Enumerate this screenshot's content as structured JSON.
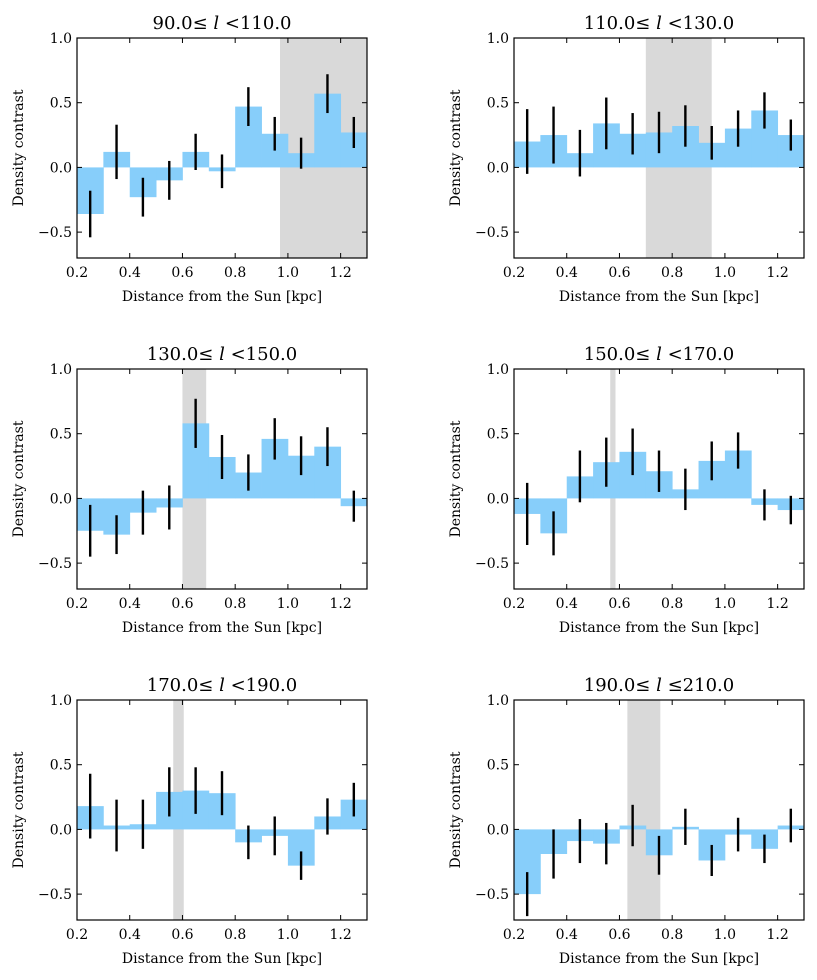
{
  "chart_data": [
    {
      "type": "bar",
      "title_parts": [
        "90.0≤ ",
        "l",
        " <110.0"
      ],
      "xlabel": "Distance from the Sun [kpc]",
      "ylabel": "Density contrast",
      "xlim": [
        0.2,
        1.3
      ],
      "ylim": [
        -0.7,
        1.0
      ],
      "xticks": [
        "0.2",
        "0.4",
        "0.6",
        "0.8",
        "1.0",
        "1.2"
      ],
      "yticks": [
        "−0.5",
        "0.0",
        "0.5",
        "1.0"
      ],
      "shaded_region": [
        0.97,
        1.3
      ],
      "bin_edges": [
        0.2,
        0.3,
        0.4,
        0.5,
        0.6,
        0.7,
        0.8,
        0.9,
        1.0,
        1.1,
        1.2,
        1.3
      ],
      "values": [
        -0.36,
        0.12,
        -0.23,
        -0.1,
        0.12,
        -0.03,
        0.47,
        0.26,
        0.11,
        0.57,
        0.27
      ],
      "errors": [
        0.18,
        0.21,
        0.15,
        0.15,
        0.14,
        0.13,
        0.15,
        0.13,
        0.12,
        0.15,
        0.12
      ],
      "bar_color": "#87cefa",
      "shade_color": "#d9d9d9"
    },
    {
      "type": "bar",
      "title_parts": [
        "110.0≤ ",
        "l",
        " <130.0"
      ],
      "xlabel": "Distance from the Sun [kpc]",
      "ylabel": "Density contrast",
      "xlim": [
        0.2,
        1.3
      ],
      "ylim": [
        -0.7,
        1.0
      ],
      "xticks": [
        "0.2",
        "0.4",
        "0.6",
        "0.8",
        "1.0",
        "1.2"
      ],
      "yticks": [
        "−0.5",
        "0.0",
        "0.5",
        "1.0"
      ],
      "shaded_region": [
        0.7,
        0.95
      ],
      "bin_edges": [
        0.2,
        0.3,
        0.4,
        0.5,
        0.6,
        0.7,
        0.8,
        0.9,
        1.0,
        1.1,
        1.2,
        1.3
      ],
      "values": [
        0.2,
        0.25,
        0.11,
        0.34,
        0.26,
        0.27,
        0.32,
        0.19,
        0.3,
        0.44,
        0.25
      ],
      "errors": [
        0.25,
        0.22,
        0.18,
        0.2,
        0.16,
        0.16,
        0.16,
        0.13,
        0.14,
        0.14,
        0.12
      ],
      "bar_color": "#87cefa",
      "shade_color": "#d9d9d9"
    },
    {
      "type": "bar",
      "title_parts": [
        "130.0≤ ",
        "l",
        " <150.0"
      ],
      "xlabel": "Distance from the Sun [kpc]",
      "ylabel": "Density contrast",
      "xlim": [
        0.2,
        1.3
      ],
      "ylim": [
        -0.7,
        1.0
      ],
      "xticks": [
        "0.2",
        "0.4",
        "0.6",
        "0.8",
        "1.0",
        "1.2"
      ],
      "yticks": [
        "−0.5",
        "0.0",
        "0.5",
        "1.0"
      ],
      "shaded_region": [
        0.6,
        0.69
      ],
      "bin_edges": [
        0.2,
        0.3,
        0.4,
        0.5,
        0.6,
        0.7,
        0.8,
        0.9,
        1.0,
        1.1,
        1.2,
        1.3
      ],
      "values": [
        -0.25,
        -0.28,
        -0.11,
        -0.07,
        0.58,
        0.32,
        0.2,
        0.46,
        0.33,
        0.4,
        -0.06
      ],
      "errors": [
        0.2,
        0.15,
        0.17,
        0.17,
        0.19,
        0.17,
        0.14,
        0.16,
        0.15,
        0.15,
        0.12
      ],
      "bar_color": "#87cefa",
      "shade_color": "#d9d9d9"
    },
    {
      "type": "bar",
      "title_parts": [
        "150.0≤ ",
        "l",
        " <170.0"
      ],
      "xlabel": "Distance from the Sun [kpc]",
      "ylabel": "Density contrast",
      "xlim": [
        0.2,
        1.3
      ],
      "ylim": [
        -0.7,
        1.0
      ],
      "xticks": [
        "0.2",
        "0.4",
        "0.6",
        "0.8",
        "1.0",
        "1.2"
      ],
      "yticks": [
        "−0.5",
        "0.0",
        "0.5",
        "1.0"
      ],
      "shaded_region": [
        0.565,
        0.585
      ],
      "bin_edges": [
        0.2,
        0.3,
        0.4,
        0.5,
        0.6,
        0.7,
        0.8,
        0.9,
        1.0,
        1.1,
        1.2,
        1.3
      ],
      "values": [
        -0.12,
        -0.27,
        0.17,
        0.28,
        0.36,
        0.21,
        0.07,
        0.29,
        0.37,
        -0.05,
        -0.09
      ],
      "errors": [
        0.24,
        0.17,
        0.2,
        0.19,
        0.18,
        0.16,
        0.16,
        0.15,
        0.14,
        0.12,
        0.11
      ],
      "bar_color": "#87cefa",
      "shade_color": "#d9d9d9"
    },
    {
      "type": "bar",
      "title_parts": [
        "170.0≤ ",
        "l",
        " <190.0"
      ],
      "xlabel": "Distance from the Sun [kpc]",
      "ylabel": "Density contrast",
      "xlim": [
        0.2,
        1.3
      ],
      "ylim": [
        -0.7,
        1.0
      ],
      "xticks": [
        "0.2",
        "0.4",
        "0.6",
        "0.8",
        "1.0",
        "1.2"
      ],
      "yticks": [
        "−0.5",
        "0.0",
        "0.5",
        "1.0"
      ],
      "shaded_region": [
        0.565,
        0.605
      ],
      "bin_edges": [
        0.2,
        0.3,
        0.4,
        0.5,
        0.6,
        0.7,
        0.8,
        0.9,
        1.0,
        1.1,
        1.2,
        1.3
      ],
      "values": [
        0.18,
        0.03,
        0.04,
        0.29,
        0.3,
        0.28,
        -0.1,
        -0.05,
        -0.28,
        0.1,
        0.23
      ],
      "errors": [
        0.25,
        0.2,
        0.19,
        0.19,
        0.18,
        0.17,
        0.13,
        0.15,
        0.11,
        0.14,
        0.13
      ],
      "bar_color": "#87cefa",
      "shade_color": "#d9d9d9"
    },
    {
      "type": "bar",
      "title_parts": [
        "190.0≤ ",
        "l",
        " ≤210.0"
      ],
      "xlabel": "Distance from the Sun [kpc]",
      "ylabel": "Density contrast",
      "xlim": [
        0.2,
        1.3
      ],
      "ylim": [
        -0.7,
        1.0
      ],
      "xticks": [
        "0.2",
        "0.4",
        "0.6",
        "0.8",
        "1.0",
        "1.2"
      ],
      "yticks": [
        "−0.5",
        "0.0",
        "0.5",
        "1.0"
      ],
      "shaded_region": [
        0.63,
        0.755
      ],
      "bin_edges": [
        0.2,
        0.3,
        0.4,
        0.5,
        0.6,
        0.7,
        0.8,
        0.9,
        1.0,
        1.1,
        1.2,
        1.3
      ],
      "values": [
        -0.5,
        -0.19,
        -0.09,
        -0.11,
        0.03,
        -0.2,
        0.02,
        -0.24,
        -0.04,
        -0.15,
        0.03
      ],
      "errors": [
        0.17,
        0.19,
        0.17,
        0.16,
        0.16,
        0.15,
        0.14,
        0.12,
        0.13,
        0.11,
        0.13
      ],
      "bar_color": "#87cefa",
      "shade_color": "#d9d9d9"
    }
  ]
}
